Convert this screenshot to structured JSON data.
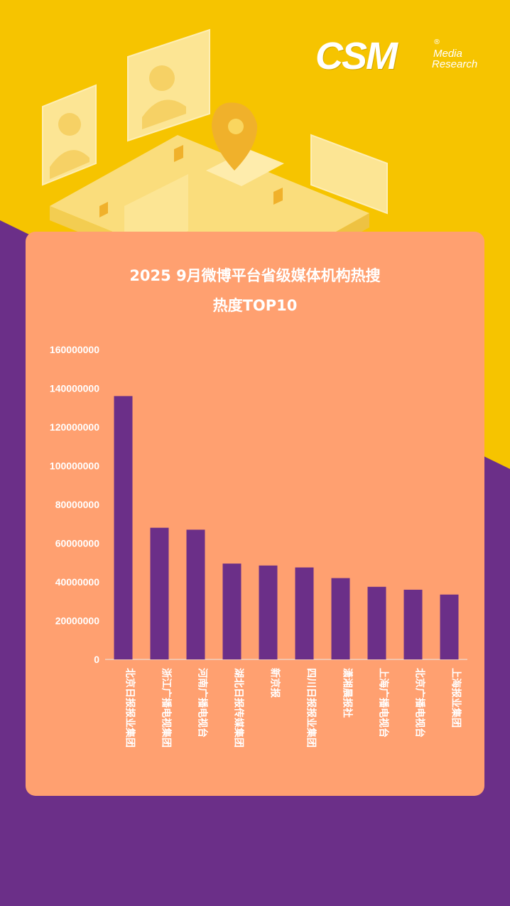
{
  "logo": {
    "brand": "CSM",
    "registered": "®",
    "line1": "Media",
    "line2": "Research"
  },
  "colors": {
    "background_yellow": "#f6c400",
    "background_purple": "#6b2f88",
    "panel": "#ffa070",
    "bar": "#6b2f88",
    "text": "#ffffff"
  },
  "chart_data": {
    "type": "bar",
    "title_line1": "2025 9月微博平台省级媒体机构热搜",
    "title_line2": "热度TOP10",
    "categories": [
      "北京日报报业集团",
      "浙江广播电视集团",
      "河南广播电视台",
      "湖北日报传媒集团",
      "新京报",
      "四川日报报业集团",
      "潇湘晨报社",
      "上海广播电视台",
      "北京广播电视台",
      "上海报业集团"
    ],
    "values": [
      136000000,
      68000000,
      67000000,
      49500000,
      48500000,
      47500000,
      42000000,
      37500000,
      36000000,
      33500000
    ],
    "ylim": [
      0,
      160000000
    ],
    "yticks": [
      "0",
      "20000000",
      "40000000",
      "60000000",
      "80000000",
      "100000000",
      "120000000",
      "140000000",
      "160000000"
    ],
    "xlabel": "",
    "ylabel": "",
    "grid": false,
    "legend": "none"
  }
}
